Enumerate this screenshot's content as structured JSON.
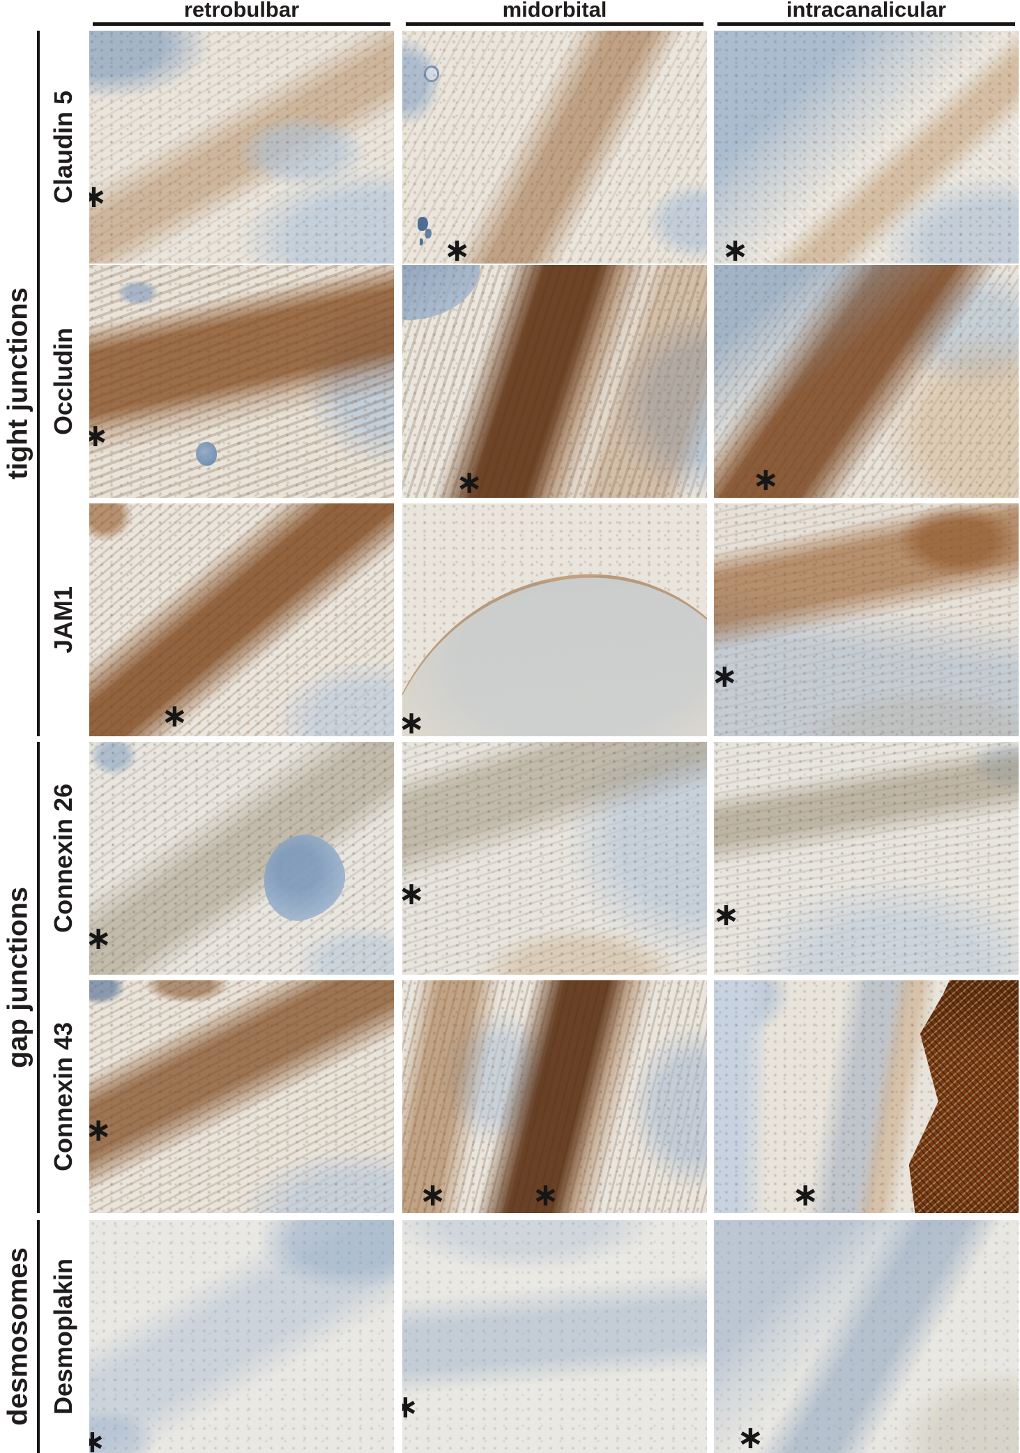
{
  "figure": {
    "kind": "immunohistochemistry panel grid",
    "columns": [
      {
        "key": "retrobulbar",
        "label": "retrobulbar"
      },
      {
        "key": "midorbital",
        "label": "midorbital"
      },
      {
        "key": "intracanalicular",
        "label": "intracanalicular"
      }
    ],
    "groups": [
      {
        "label": "tight junctions",
        "rows": [
          "claudin5",
          "occludin",
          "jam1"
        ]
      },
      {
        "label": "gap junctions",
        "rows": [
          "connexin26",
          "connexin43"
        ]
      },
      {
        "label": "desmosomes",
        "rows": [
          "desmoplakin"
        ]
      }
    ],
    "rows": [
      {
        "key": "claudin5",
        "label": "Claudin 5",
        "group": "tight junctions",
        "panels": [
          {
            "column": "retrobulbar",
            "staining": "weak-moderate brown along vessel wall",
            "grain": "brown",
            "asterisks": [
              {
                "x": 1.5,
                "y": 71
              }
            ]
          },
          {
            "column": "midorbital",
            "staining": "moderate patchy brown along vessel wall",
            "grain": "brown",
            "asterisks": [
              {
                "x": 18,
                "y": 94
              }
            ]
          },
          {
            "column": "intracanalicular",
            "staining": "weak-moderate brown along vessel wall",
            "grain": "brown",
            "asterisks": [
              {
                "x": 7,
                "y": 94
              }
            ]
          }
        ]
      },
      {
        "key": "occludin",
        "label": "Occludin",
        "group": "tight junctions",
        "panels": [
          {
            "column": "retrobulbar",
            "staining": "strong brown streaky band",
            "grain": "brown",
            "asterisks": [
              {
                "x": 2,
                "y": 73
              }
            ]
          },
          {
            "column": "midorbital",
            "staining": "strong dense dark-brown band",
            "grain": "brown",
            "asterisks": [
              {
                "x": 22,
                "y": 93
              }
            ]
          },
          {
            "column": "intracanalicular",
            "staining": "strong brown band",
            "grain": "brown",
            "asterisks": [
              {
                "x": 17,
                "y": 92
              }
            ]
          }
        ]
      },
      {
        "key": "jam1",
        "label": "JAM1",
        "group": "tight junctions",
        "panels": [
          {
            "column": "retrobulbar",
            "staining": "strong brown band",
            "grain": "brown",
            "asterisks": [
              {
                "x": 28,
                "y": 91
              }
            ]
          },
          {
            "column": "midorbital",
            "staining": "weak brown rim along tissue surface",
            "grain": "brown",
            "asterisks": [
              {
                "x": 3,
                "y": 94
              }
            ]
          },
          {
            "column": "intracanalicular",
            "staining": "moderate brown along vessel margin",
            "grain": "brown",
            "asterisks": [
              {
                "x": 3.5,
                "y": 74
              }
            ]
          }
        ]
      },
      {
        "key": "connexin26",
        "label": "Connexin 26",
        "group": "gap junctions",
        "panels": [
          {
            "column": "retrobulbar",
            "staining": "minimal gray-brown speckling",
            "grain": "dark",
            "asterisks": [
              {
                "x": 3,
                "y": 84
              }
            ]
          },
          {
            "column": "midorbital",
            "staining": "minimal gray-brown speckling",
            "grain": "dark",
            "asterisks": [
              {
                "x": 3,
                "y": 65
              }
            ]
          },
          {
            "column": "intracanalicular",
            "staining": "minimal gray-brown speckling",
            "grain": "dark",
            "asterisks": [
              {
                "x": 4,
                "y": 74
              }
            ]
          }
        ]
      },
      {
        "key": "connexin43",
        "label": "Connexin 43",
        "group": "gap junctions",
        "panels": [
          {
            "column": "retrobulbar",
            "staining": "moderate brown speckled band",
            "grain": "brown",
            "asterisks": [
              {
                "x": 3,
                "y": 64
              }
            ]
          },
          {
            "column": "midorbital",
            "staining": "strong brown bands",
            "grain": "brown",
            "asterisks": [
              {
                "x": 10,
                "y": 92
              },
              {
                "x": 47,
                "y": 92
              }
            ]
          },
          {
            "column": "intracanalicular",
            "staining": "strong dense brown plexus at right, weak in vessel wall",
            "grain": "brown",
            "asterisks": [
              {
                "x": 30,
                "y": 92
              }
            ]
          }
        ]
      },
      {
        "key": "desmoplakin",
        "label": "Desmoplakin",
        "group": "desmosomes",
        "panels": [
          {
            "column": "retrobulbar",
            "staining": "negative - blue hematoxylin counterstain only",
            "grain": "blue",
            "asterisks": [
              {
                "x": 1,
                "y": 95
              }
            ]
          },
          {
            "column": "midorbital",
            "staining": "negative - blue hematoxylin counterstain only",
            "grain": "blue",
            "asterisks": [
              {
                "x": 1,
                "y": 80
              }
            ]
          },
          {
            "column": "intracanalicular",
            "staining": "negative - blue hematoxylin counterstain only",
            "grain": "blue",
            "asterisks": [
              {
                "x": 12,
                "y": 93
              }
            ]
          }
        ]
      }
    ]
  },
  "legend": {
    "asterisk": "∗"
  },
  "colors": {
    "label_text": "#1f1c1b",
    "rule_black": "#171514",
    "tissue_cream": "#e9e6df",
    "hematoxylin_blue": "#a9bdd2",
    "dab_brown_strong": "#5a2a0a",
    "dab_brown_mid": "#9a5a24",
    "dab_tan": "#c79a68",
    "asterisk": "#161616"
  }
}
